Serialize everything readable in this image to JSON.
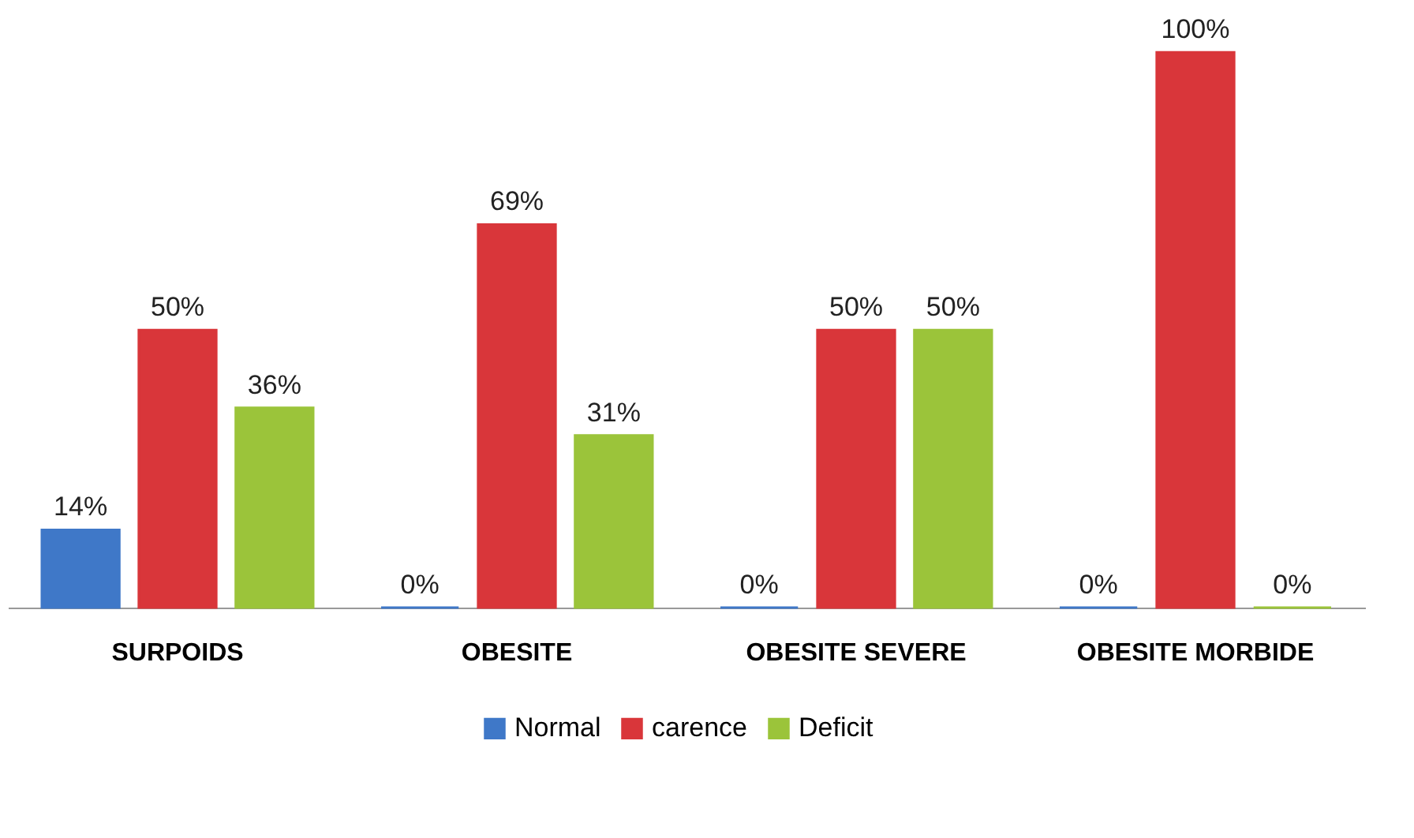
{
  "chart_data": {
    "type": "bar",
    "categories": [
      "SURPOIDS",
      "OBESITE",
      "OBESITE SEVERE",
      "OBESITE MORBIDE"
    ],
    "series": [
      {
        "name": "Normal",
        "color": "#3f78c8",
        "values": [
          14,
          0,
          0,
          0
        ],
        "value_labels": [
          "14%",
          "0%",
          "0%",
          "0%"
        ]
      },
      {
        "name": "carence",
        "color": "#d9363a",
        "values": [
          50,
          69,
          50,
          100
        ],
        "value_labels": [
          "50%",
          "69%",
          "50%",
          "100%"
        ]
      },
      {
        "name": "Deficit",
        "color": "#9bc43a",
        "values": [
          36,
          31,
          50,
          0
        ],
        "value_labels": [
          "36%",
          "31%",
          "50%",
          "0%"
        ]
      }
    ],
    "legend": "bottom",
    "grid": false
  }
}
